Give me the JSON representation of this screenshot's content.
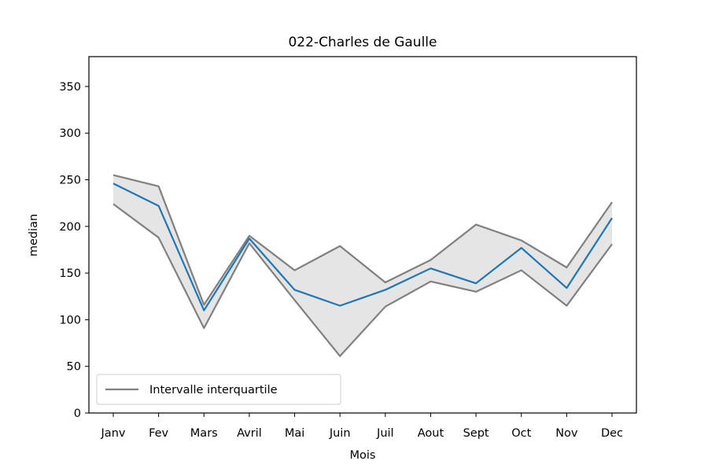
{
  "chart_data": {
    "type": "line",
    "title": "022-Charles de Gaulle",
    "xlabel": "Mois",
    "ylabel": "median",
    "categories": [
      "Janv",
      "Fev",
      "Mars",
      "Avril",
      "Mai",
      "Juin",
      "Juil",
      "Aout",
      "Sept",
      "Oct",
      "Nov",
      "Dec"
    ],
    "ylim": [
      0,
      382
    ],
    "yticks": [
      0,
      50,
      100,
      150,
      200,
      250,
      300,
      350
    ],
    "grid": false,
    "legend_position": "lower-left",
    "series": [
      {
        "role": "median",
        "color": "#1f77b4",
        "values": [
          246,
          222,
          110,
          187,
          132,
          115,
          132,
          155,
          139,
          177,
          134,
          209
        ]
      },
      {
        "role": "q3",
        "color": "#808080",
        "values": [
          255,
          243,
          116,
          190,
          153,
          179,
          140,
          164,
          202,
          185,
          156,
          226
        ]
      },
      {
        "role": "q1",
        "color": "#808080",
        "values": [
          224,
          188,
          91,
          182,
          121,
          61,
          114,
          141,
          130,
          153,
          115,
          181
        ]
      }
    ],
    "band": {
      "color": "#e5e5e5"
    },
    "legend": [
      {
        "label": "Intervalle interquartile",
        "color": "#808080"
      }
    ]
  }
}
